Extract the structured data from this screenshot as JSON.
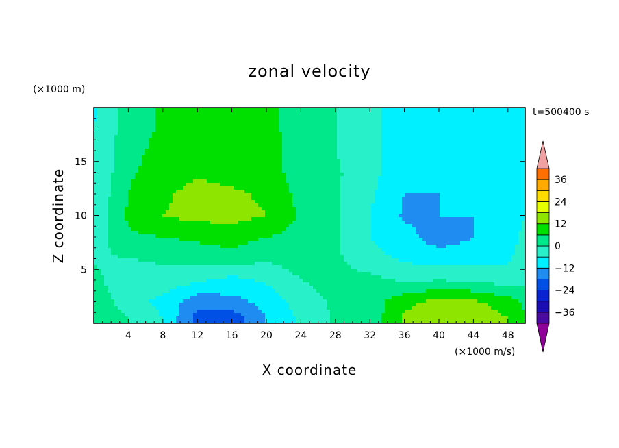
{
  "chart_data": {
    "type": "heatmap",
    "title": "zonal velocity",
    "xlabel": "X coordinate",
    "ylabel": "Z coordinate",
    "x_units": "(×1000 m/s)",
    "y_units": "(×1000 m)",
    "time_label": "t=500400 s",
    "xlim": [
      0,
      50
    ],
    "ylim": [
      0,
      20
    ],
    "x_ticks": [
      4,
      8,
      12,
      16,
      20,
      24,
      28,
      32,
      36,
      40,
      44,
      48
    ],
    "y_ticks": [
      5,
      10,
      15
    ],
    "colorbar": {
      "ticks": [
        36,
        24,
        12,
        0,
        -12,
        -24,
        -36
      ],
      "levels": [
        -42,
        -36,
        -30,
        -24,
        -18,
        -12,
        -6,
        0,
        6,
        12,
        18,
        24,
        30,
        36,
        42
      ],
      "colors": [
        "#8e0098",
        "#4b0aa0",
        "#1c0cb4",
        "#0a23d2",
        "#0050e6",
        "#1e8cf0",
        "#00f0ff",
        "#28f0c8",
        "#00e88a",
        "#00e000",
        "#8ee600",
        "#e6ff00",
        "#ffdc00",
        "#ffaa00",
        "#ff6e00",
        "#ff1e00",
        "#f0a0a0"
      ]
    },
    "x": [
      0,
      4,
      8,
      12,
      16,
      20,
      24,
      28,
      32,
      36,
      40,
      44,
      48,
      50
    ],
    "z": [
      0.5,
      2,
      4,
      6,
      8,
      10,
      12,
      14,
      16,
      18,
      19.5
    ],
    "values": [
      [
        6,
        0,
        -6,
        -20,
        -22,
        -12,
        -5,
        1,
        2,
        13,
        17,
        16,
        12,
        8
      ],
      [
        4,
        -3,
        -8,
        -16,
        -14,
        -10,
        -3,
        1,
        3,
        10,
        14,
        13,
        9,
        4
      ],
      [
        2,
        -5,
        -2,
        -5,
        -8,
        -5,
        0,
        2,
        2,
        -1,
        0,
        -1,
        -3,
        -2
      ],
      [
        -1,
        0,
        1,
        3,
        3,
        1,
        3,
        1,
        -4,
        -7,
        -9,
        -9,
        -7,
        -3
      ],
      [
        -3,
        5,
        6,
        7,
        9,
        6,
        4,
        1,
        -6,
        -10,
        -15,
        -12,
        -9,
        -4
      ],
      [
        -4,
        7,
        12,
        14,
        14,
        12,
        5,
        1,
        -6,
        -13,
        -12,
        -12,
        -10,
        -6
      ],
      [
        -5,
        6,
        11,
        14,
        13,
        11,
        4,
        1,
        -5,
        -12,
        -12,
        -12,
        -11,
        -7
      ],
      [
        -6,
        5,
        9,
        11,
        10,
        9,
        3,
        1,
        -4,
        -10,
        -12,
        -12,
        -11,
        -8
      ],
      [
        -5,
        4,
        8,
        9,
        9,
        9,
        2,
        0,
        -4,
        -10,
        -12,
        -12,
        -11,
        -8
      ],
      [
        -6,
        3,
        7,
        8,
        8,
        8,
        3,
        0,
        -4,
        -11,
        -12,
        -12,
        -11,
        -8
      ],
      [
        -7,
        3,
        7,
        8,
        8,
        8,
        3,
        0,
        -4,
        -11,
        -12,
        -12,
        -11,
        -8
      ]
    ]
  }
}
